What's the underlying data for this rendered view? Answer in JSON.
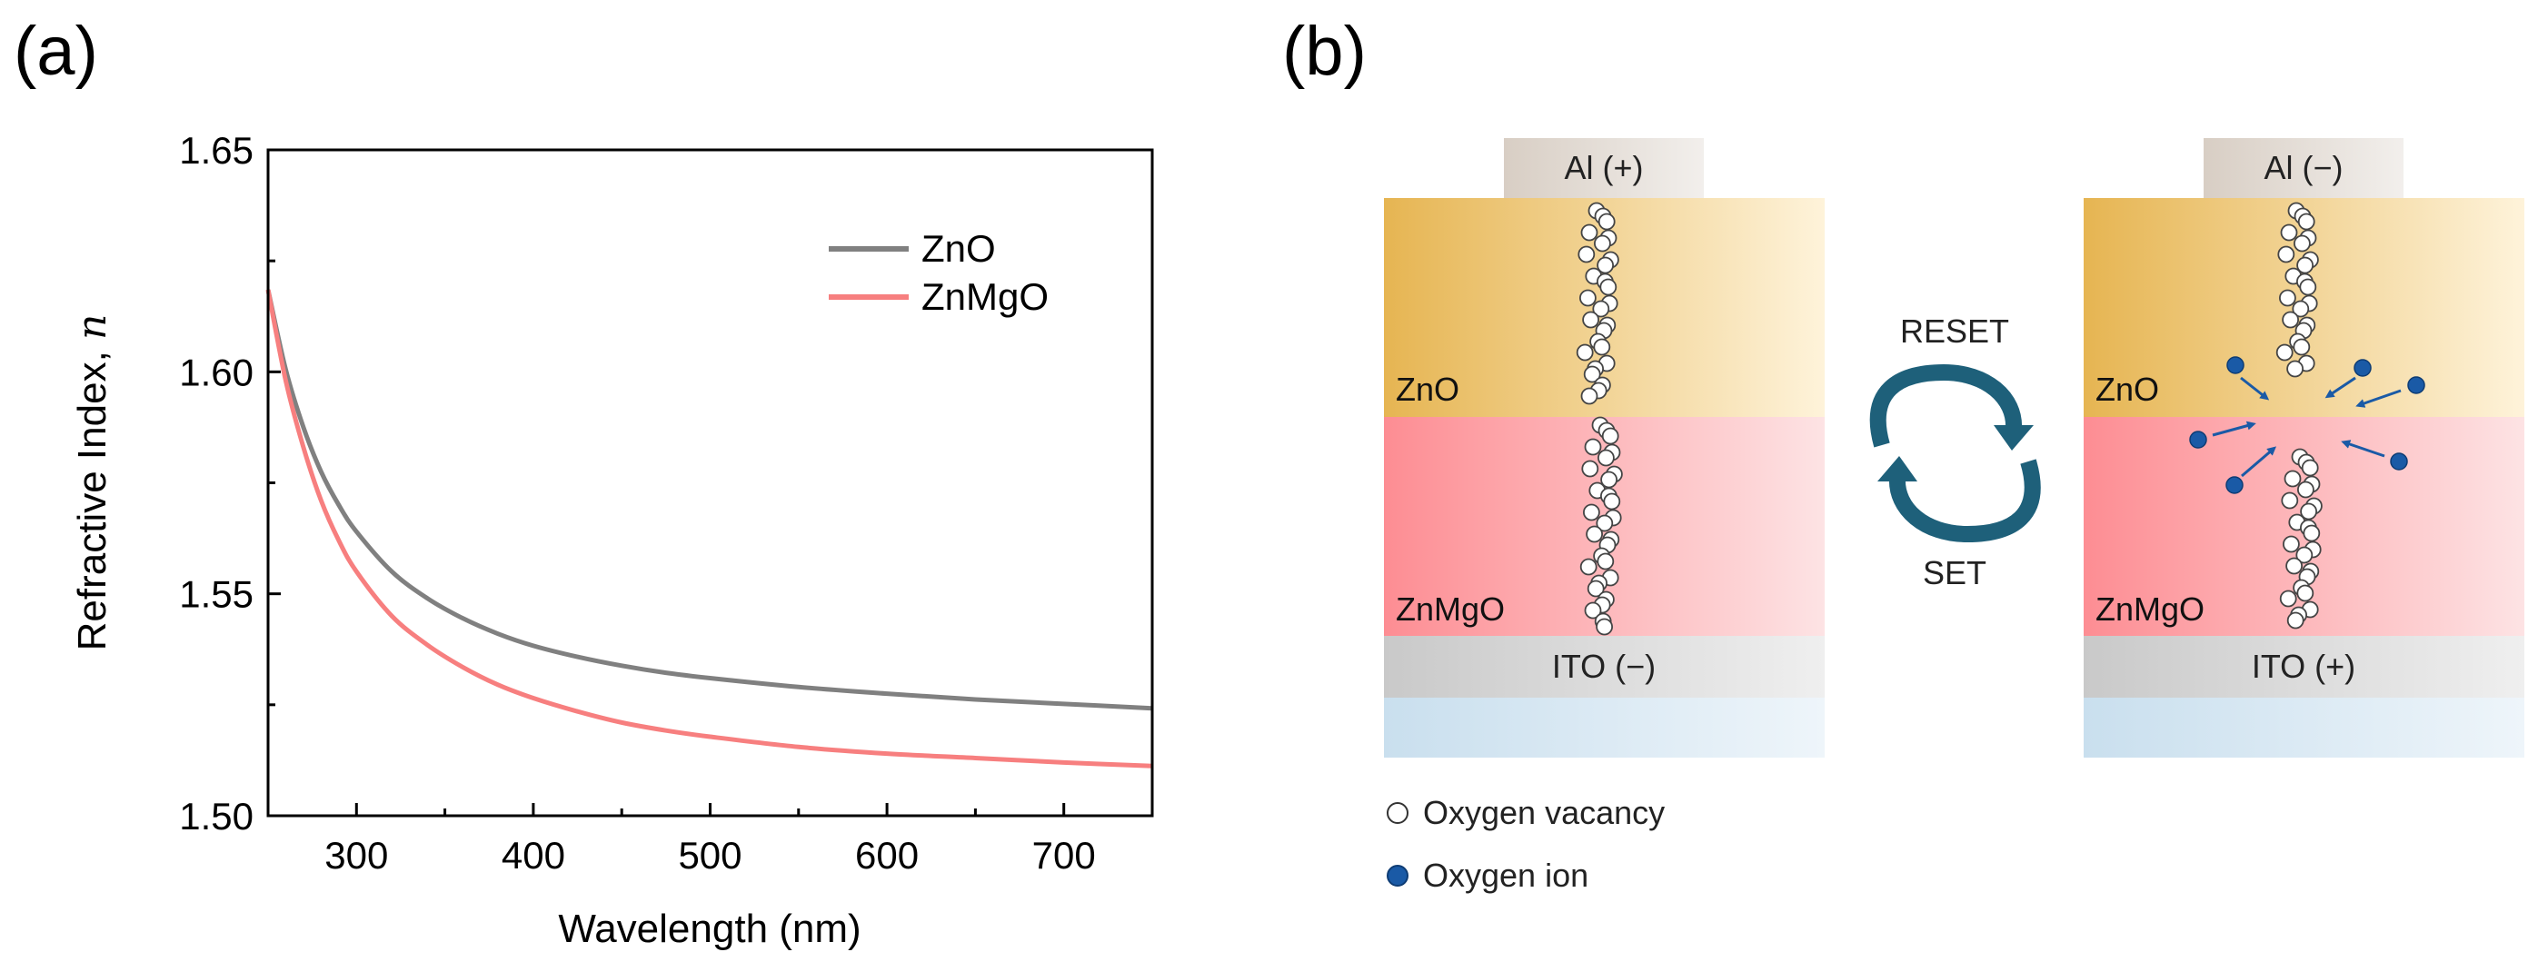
{
  "panel_a": {
    "label": "(a)"
  },
  "panel_b": {
    "label": "(b)",
    "left_stack": {
      "top_electrode": "Al (+)",
      "upper_layer": "ZnO",
      "lower_layer": "ZnMgO",
      "bottom_electrode": "ITO (−)"
    },
    "right_stack": {
      "top_electrode": "Al (−)",
      "upper_layer": "ZnO",
      "lower_layer": "ZnMgO",
      "bottom_electrode": "ITO (+)"
    },
    "cycle": {
      "top_label": "RESET",
      "bottom_label": "SET"
    },
    "legend": {
      "vacancy": "Oxygen vacancy",
      "ion": "Oxygen ion"
    },
    "colors": {
      "zno_dark": "#E6B552",
      "zno_light": "#FEF3DA",
      "znmgo_dark": "#FD8D93",
      "znmgo_light": "#FDE3E4",
      "ito": "#D9D9D9",
      "substrate": "#DCEAF4",
      "al": "#E2DCD6",
      "ion": "#1A5AA6",
      "arrow": "#1A5AA6",
      "cycle": "#1E607A"
    }
  },
  "chart_data": {
    "type": "line",
    "title": "",
    "xlabel": "Wavelength (nm)",
    "ylabel": "Refractive Index, ",
    "ylabel_symbol": "n",
    "xlim": [
      250,
      750
    ],
    "ylim": [
      1.5,
      1.65
    ],
    "x_major_ticks": [
      300,
      400,
      500,
      600,
      700
    ],
    "x_tick_labels": [
      "300",
      "400",
      "500",
      "600",
      "700"
    ],
    "x_minor_ticks": [
      250,
      350,
      450,
      550,
      650,
      750
    ],
    "y_major_ticks": [
      1.5,
      1.55,
      1.6,
      1.65
    ],
    "y_tick_labels": [
      "1.50",
      "1.55",
      "1.60",
      "1.65"
    ],
    "y_minor_ticks": [
      1.525,
      1.575,
      1.625
    ],
    "grid": false,
    "legend_position": "top-right",
    "series": [
      {
        "name": "ZnO",
        "color": "#808080",
        "x": [
          250,
          260,
          270,
          280,
          290,
          300,
          320,
          340,
          360,
          380,
          400,
          425,
          450,
          475,
          500,
          550,
          600,
          650,
          700,
          750
        ],
        "y": [
          1.6185,
          1.6005,
          1.5875,
          1.5775,
          1.57,
          1.564,
          1.555,
          1.549,
          1.5445,
          1.541,
          1.5383,
          1.5358,
          1.5338,
          1.5322,
          1.531,
          1.529,
          1.5275,
          1.5262,
          1.5252,
          1.5242
        ]
      },
      {
        "name": "ZnMgO",
        "color": "#F77F7F",
        "x": [
          250,
          260,
          270,
          280,
          290,
          300,
          320,
          340,
          360,
          380,
          400,
          425,
          450,
          475,
          500,
          550,
          600,
          650,
          700,
          750
        ],
        "y": [
          1.6185,
          1.598,
          1.583,
          1.571,
          1.562,
          1.555,
          1.545,
          1.5385,
          1.5335,
          1.5295,
          1.5265,
          1.5235,
          1.521,
          1.5192,
          1.5178,
          1.5155,
          1.514,
          1.513,
          1.512,
          1.5112
        ]
      }
    ]
  }
}
